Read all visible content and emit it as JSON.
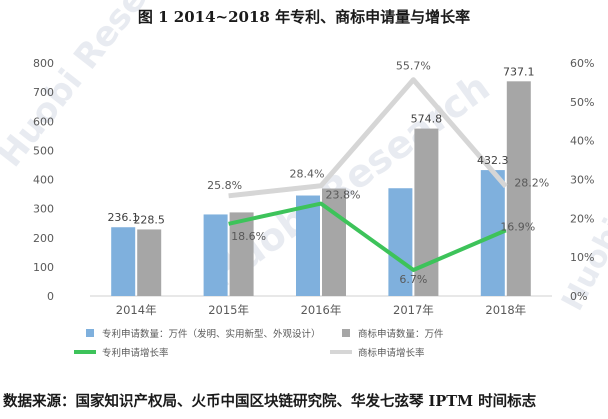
{
  "title": "图 1    2014~2018 年专利、商标申请量与增长率",
  "footer": "数据来源：国家知识产权局、火币中国区块链研究院、华发七弦琴 IPTM 时间标志",
  "watermark": "Huobi Research",
  "colors": {
    "patent_bar": "#7fb0dd",
    "trademark_bar": "#a6a6a6",
    "patent_growth": "#3dc35a",
    "trademark_growth": "#d6d6d6"
  },
  "chart_data": {
    "type": "bar",
    "categories": [
      "2014年",
      "2015年",
      "2016年",
      "2017年",
      "2018年"
    ],
    "y_left": {
      "ylim": [
        0,
        800
      ],
      "ticks": [
        "0",
        "100",
        "200",
        "300",
        "400",
        "500",
        "600",
        "700",
        "800"
      ]
    },
    "y_right": {
      "ylim": [
        0,
        60
      ],
      "ticks": [
        "0%",
        "10%",
        "20%",
        "30%",
        "40%",
        "50%",
        "60%"
      ]
    },
    "series": [
      {
        "name": "专利申请数量：万件（发明、实用新型、外观设计）",
        "kind": "bar",
        "axis": "left",
        "values": [
          236.1,
          280,
          345,
          370,
          432.3
        ],
        "labels": [
          "236.1",
          "",
          "",
          "",
          "432.3"
        ]
      },
      {
        "name": "商标申请数量：万件",
        "kind": "bar",
        "axis": "left",
        "values": [
          228.5,
          287,
          369,
          574.8,
          737.1
        ],
        "labels": [
          "228.5",
          "",
          "",
          "574.8",
          "737.1"
        ]
      },
      {
        "name": "专利申请增长率",
        "kind": "line",
        "axis": "right",
        "values": [
          null,
          18.6,
          23.8,
          6.7,
          16.9
        ],
        "labels": [
          "",
          "18.6%",
          "23.8%",
          "6.7%",
          "16.9%"
        ]
      },
      {
        "name": "商标申请增长率",
        "kind": "line",
        "axis": "right",
        "values": [
          null,
          25.8,
          28.4,
          55.7,
          28.2
        ],
        "labels": [
          "",
          "25.8%",
          "28.4%",
          "55.7%",
          "28.2%"
        ]
      }
    ],
    "grid": false,
    "legend_position": "bottom"
  }
}
